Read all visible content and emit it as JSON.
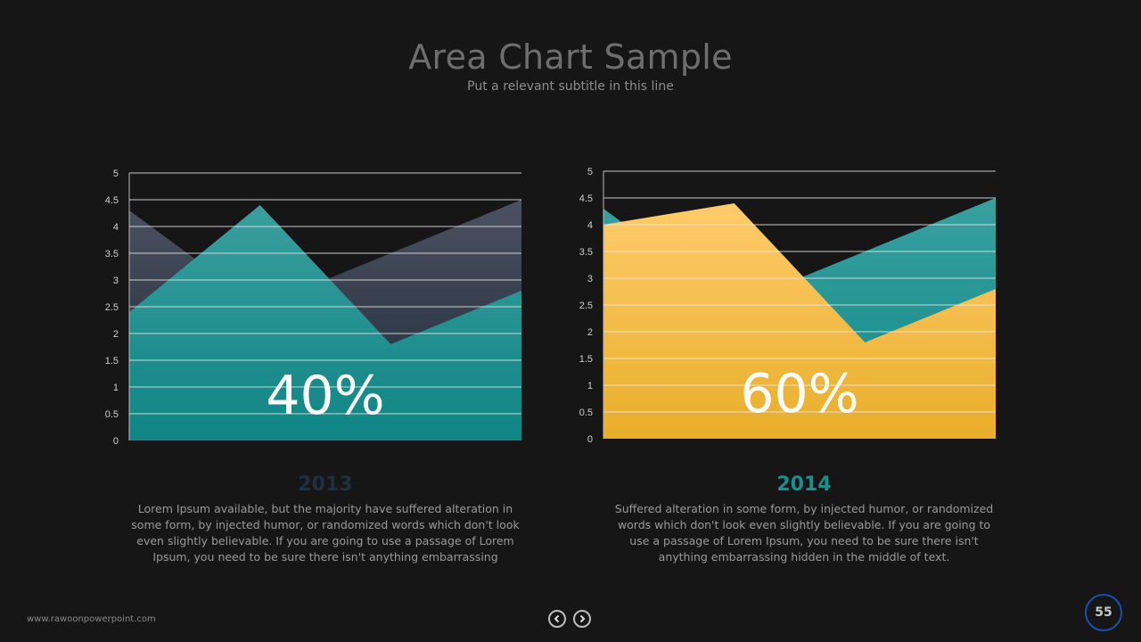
{
  "header": {
    "title": "Area Chart Sample",
    "subtitle": "Put a relevant subtitle in this line"
  },
  "charts": [
    {
      "year": "2013",
      "year_color": "#1e3140",
      "percent": "40%",
      "description": "Lorem Ipsum available, but the majority have suffered alteration in some form, by injected humor, or randomized words which don't look even slightly believable. If you are going to use a  passage of Lorem Ipsum, you need to be sure there isn't anything embarrassing"
    },
    {
      "year": "2014",
      "year_color": "#1a8f8f",
      "percent": "60%",
      "description": "Suffered alteration in some form, by injected humor, or randomized words which don't look even slightly believable. If you are going to use a passage of Lorem Ipsum, you need to be sure there isn't anything embarrassing hidden in the middle of text."
    }
  ],
  "chart_data": [
    {
      "type": "area",
      "x": [
        1,
        2,
        3,
        4
      ],
      "ylim": [
        0,
        5
      ],
      "yticks": [
        "0",
        "0.5",
        "1",
        "1.5",
        "2",
        "2.5",
        "3",
        "3.5",
        "4",
        "4.5",
        "5"
      ],
      "grid": true,
      "series": [
        {
          "values": [
            4.3,
            2.5,
            3.5,
            4.5
          ],
          "color_top": "#4b5160",
          "color_bottom": "#1e2a38"
        },
        {
          "values": [
            2.4,
            4.4,
            1.8,
            2.8
          ],
          "color_top": "#3a9e9e",
          "color_bottom": "#0f8584"
        }
      ]
    },
    {
      "type": "area",
      "x": [
        1,
        2,
        3,
        4
      ],
      "ylim": [
        0,
        5
      ],
      "yticks": [
        "0",
        "0.5",
        "1",
        "1.5",
        "2",
        "2.5",
        "3",
        "3.5",
        "4",
        "4.5",
        "5"
      ],
      "grid": true,
      "series": [
        {
          "values": [
            4.3,
            2.5,
            3.5,
            4.5
          ],
          "color_top": "#3aa0a0",
          "color_bottom": "#0e8a88"
        },
        {
          "values": [
            4.0,
            4.4,
            1.8,
            2.8
          ],
          "color_top": "#ffcb6b",
          "color_bottom": "#e8ae2a"
        }
      ]
    }
  ],
  "footer": {
    "url": "www.rawoonpowerpoint.com",
    "page": "55",
    "prev_icon": "chevron-left-icon",
    "next_icon": "chevron-right-icon"
  }
}
